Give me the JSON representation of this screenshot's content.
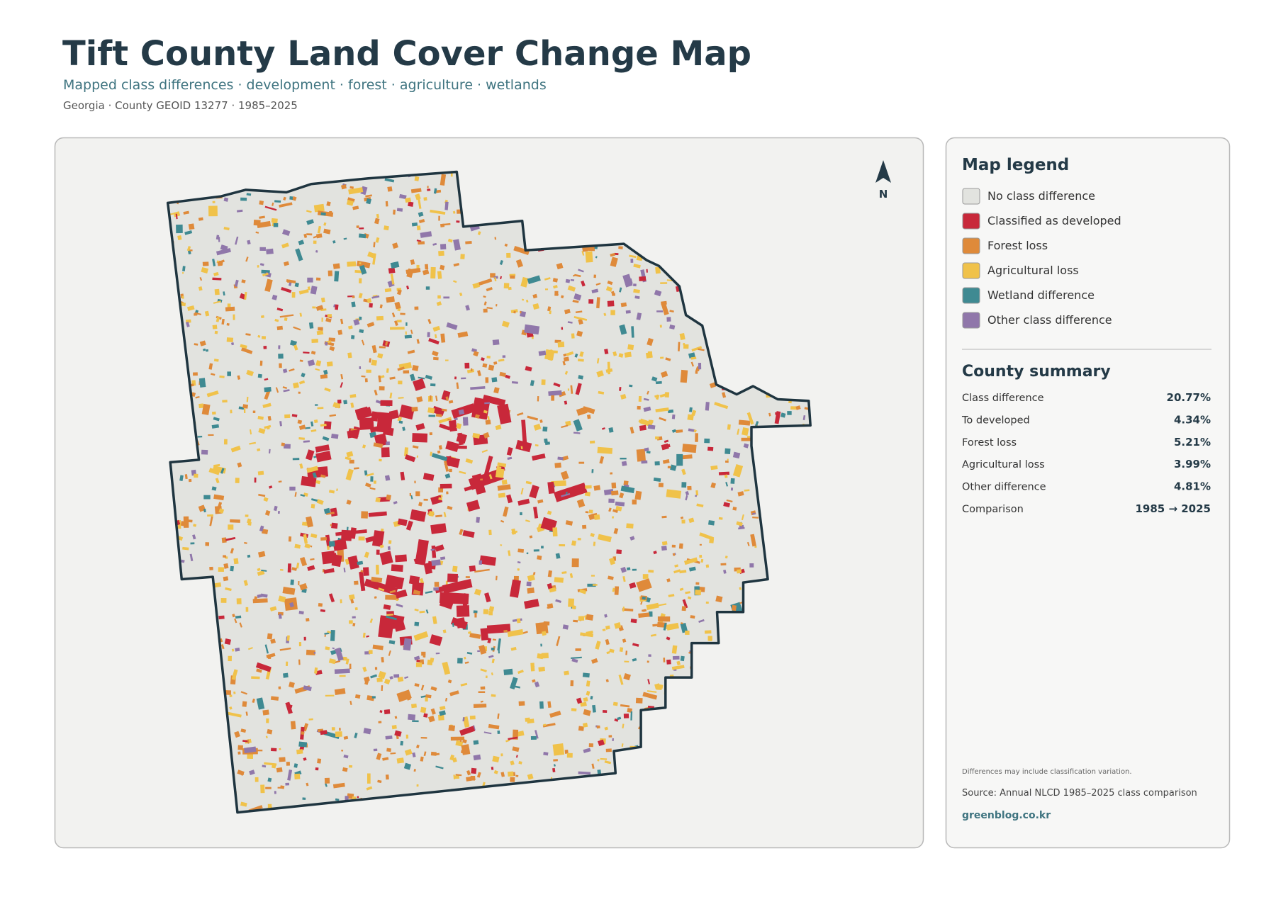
{
  "header": {
    "title": "Tift County Land Cover Change Map",
    "subtitle": "Mapped class differences · development · forest · agriculture · wetlands",
    "meta": "Georgia · County GEOID 13277 · 1985–2025"
  },
  "map": {
    "north_label": "N"
  },
  "legend": {
    "title": "Map legend",
    "items": [
      {
        "label": "No class difference",
        "color": "#e2e3df"
      },
      {
        "label": "Classified as developed",
        "color": "#c8283a"
      },
      {
        "label": "Forest loss",
        "color": "#df8a3a"
      },
      {
        "label": "Agricultural loss",
        "color": "#f0c24a"
      },
      {
        "label": "Wetland difference",
        "color": "#3f8a92"
      },
      {
        "label": "Other class difference",
        "color": "#9077aa"
      }
    ]
  },
  "summary": {
    "title": "County summary",
    "rows": [
      [
        "Class difference",
        "20.77%"
      ],
      [
        "To developed",
        "4.34%"
      ],
      [
        "Forest loss",
        "5.21%"
      ],
      [
        "Agricultural loss",
        "3.99%"
      ],
      [
        "Other difference",
        "4.81%"
      ],
      [
        "Comparison",
        "1985 → 2025"
      ]
    ]
  },
  "footer": {
    "note": "Differences may include classification variation.",
    "source": "Source: Annual NLCD 1985–2025 class comparison",
    "site": "greenblog.co.kr"
  }
}
